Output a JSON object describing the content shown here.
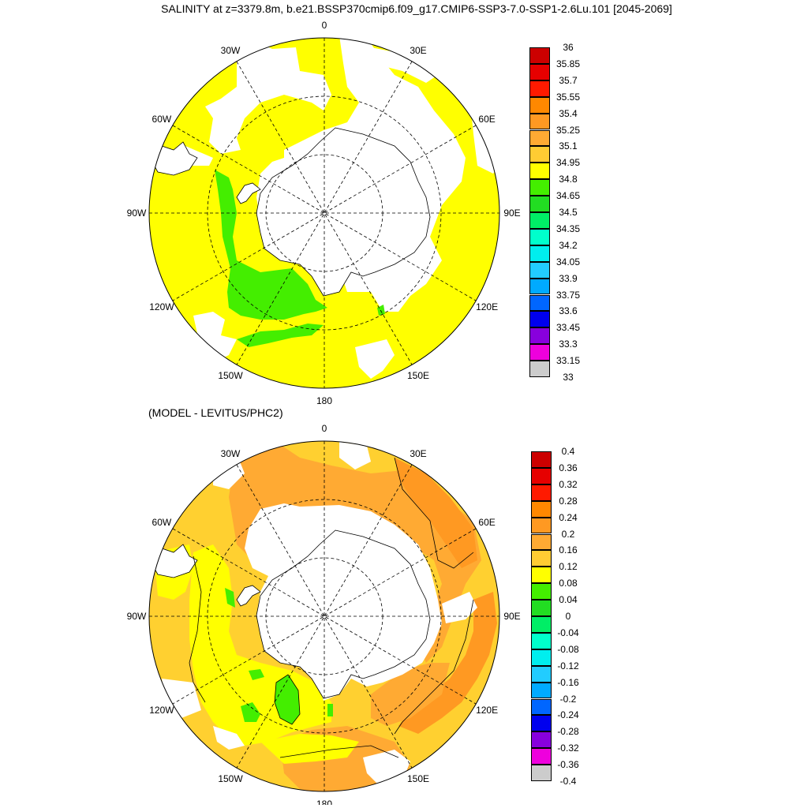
{
  "title": "SALINITY at z=3379.8m, b.e21.BSSP370cmip6.f09_g17.CMIP6-SSP3-7.0-SSP1-2.6Lu.101 [2045-2069]",
  "subtitle": "(MODEL - LEVITUS/PHC2)",
  "lon_labels": [
    "0",
    "30E",
    "60E",
    "90E",
    "120E",
    "150E",
    "180",
    "150W",
    "120W",
    "90W",
    "60W",
    "30W"
  ],
  "colors": {
    "land": "#ffffff",
    "missing": "#ffffff",
    "grid": "#000000",
    "yellow": "#ffff00",
    "green": "#44ee00",
    "orange": "#ffaa33",
    "light_orange": "#ffd030",
    "dark_orange": "#ff9922"
  },
  "top_map": {
    "colorbar": {
      "labels": [
        "36",
        "35.85",
        "35.7",
        "35.55",
        "35.4",
        "35.25",
        "35.1",
        "34.95",
        "34.8",
        "34.65",
        "34.5",
        "34.35",
        "34.2",
        "34.05",
        "33.9",
        "33.75",
        "33.6",
        "33.45",
        "33.3",
        "33.15",
        "33"
      ],
      "colors": [
        "#cc0000",
        "#e60000",
        "#ff1a00",
        "#ff8800",
        "#ff9922",
        "#ffaa33",
        "#ffcc33",
        "#ffff00",
        "#44ee00",
        "#22dd22",
        "#00ee66",
        "#00ffcc",
        "#00eeee",
        "#22ccff",
        "#00aaff",
        "#0066ff",
        "#0000ee",
        "#8800dd",
        "#ee00dd",
        "#cccccc",
        "#777777"
      ]
    }
  },
  "bottom_map": {
    "colorbar": {
      "labels": [
        "0.4",
        "0.36",
        "0.32",
        "0.28",
        "0.24",
        "0.2",
        "0.16",
        "0.12",
        "0.08",
        "0.04",
        "0",
        "-0.04",
        "-0.08",
        "-0.12",
        "-0.16",
        "-0.2",
        "-0.24",
        "-0.28",
        "-0.32",
        "-0.36",
        "-0.4"
      ],
      "colors": [
        "#cc0000",
        "#e60000",
        "#ff1a00",
        "#ff8800",
        "#ff9922",
        "#ffaa33",
        "#ffcc33",
        "#ffff00",
        "#44ee00",
        "#22dd22",
        "#00ee66",
        "#00ffcc",
        "#00eeee",
        "#22ccff",
        "#00aaff",
        "#0066ff",
        "#0000ee",
        "#8800dd",
        "#ee00dd",
        "#cccccc",
        "#777777"
      ]
    }
  }
}
